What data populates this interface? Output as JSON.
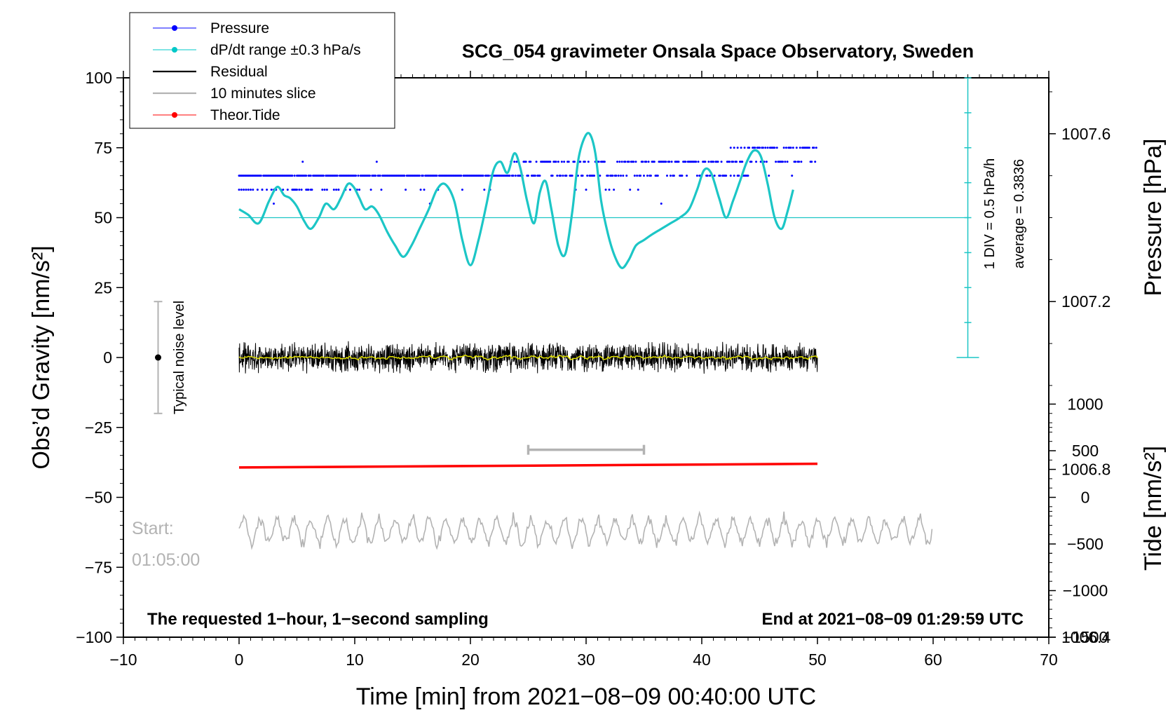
{
  "chart_data": {
    "type": "line",
    "title": "SCG_054 gravimeter Onsala Space Observatory, Sweden",
    "xlabel": "Time [min] from 2021−08−09 00:40:00 UTC",
    "xlim": [
      -10,
      70
    ],
    "x_ticks": [
      "−10",
      "0",
      "10",
      "20",
      "30",
      "40",
      "50",
      "60",
      "70"
    ],
    "left_axis": {
      "label": "Obs’d Gravity [nm/s²]",
      "ylim": [
        -100,
        100
      ],
      "ticks": [
        "100",
        "75",
        "50",
        "25",
        "0",
        "−25",
        "−50",
        "−75",
        "−100"
      ]
    },
    "right_axis_pressure": {
      "label": "Pressure [hPa]",
      "ticks": [
        "1007.6",
        "1007.2",
        "1006.8",
        "1006.4"
      ]
    },
    "right_axis_tide": {
      "label": "Tide [nm/s²]",
      "ticks": [
        "1000",
        "500",
        "0",
        "−500",
        "−1000",
        "−1500"
      ]
    },
    "legend": [
      {
        "label": "Pressure",
        "color": "#0000ff",
        "marker": true
      },
      {
        "label": "dP/dt range ±0.3 hPa/s",
        "color": "#00c8c8",
        "marker": true
      },
      {
        "label": "Residual",
        "color": "#000000",
        "marker": false
      },
      {
        "label": "10 minutes slice",
        "color": "#b3b3b3",
        "marker": false
      },
      {
        "label": "Theor.Tide",
        "color": "#ff0000",
        "marker": true
      }
    ],
    "colors": {
      "pressure": "#0000ff",
      "dpdt": "#1cc6c6",
      "residual": "#000000",
      "residual_smooth": "#e0e000",
      "slice": "#b3b3b3",
      "tide": "#ff0000"
    },
    "series": {
      "pressure_levels_gravity": [
        75,
        70,
        65,
        60,
        55
      ],
      "dpdt": {
        "x": [
          0,
          0.8,
          1.7,
          2.6,
          3.3,
          3.9,
          4.4,
          5,
          5.6,
          6.2,
          6.9,
          7.5,
          8.2,
          8.8,
          9.4,
          9.9,
          10.4,
          10.9,
          11.5,
          12.1,
          12.8,
          13.5,
          14.2,
          14.9,
          15.6,
          16.4,
          17.1,
          17.8,
          18.6,
          19.3,
          20.0,
          20.7,
          21.4,
          22.0,
          22.6,
          23.2,
          23.8,
          24.3,
          24.9,
          25.5,
          26.0,
          26.5,
          27.0,
          27.6,
          28.2,
          28.8,
          29.3,
          29.8,
          30.3,
          30.8,
          31.3,
          31.9,
          32.5,
          33.1,
          33.7,
          34.3,
          35.0,
          35.7,
          36.5,
          37.3,
          38.1,
          38.9,
          39.6,
          40.2,
          40.8,
          41.5,
          42.1,
          42.7,
          43.3,
          43.9,
          44.5,
          45.1,
          45.7,
          46.3,
          46.9,
          47.4,
          47.9
        ],
        "y": [
          53,
          51,
          48,
          56,
          61,
          58,
          57,
          54,
          49,
          46,
          50,
          55,
          53,
          57,
          62,
          61,
          57,
          53,
          54,
          51,
          45,
          40,
          36,
          40,
          46,
          53,
          60,
          62,
          56,
          42,
          33,
          42,
          55,
          67,
          70,
          66,
          73,
          68,
          56,
          48,
          59,
          63,
          53,
          40,
          37,
          52,
          70,
          78,
          80,
          73,
          56,
          44,
          36,
          32,
          35,
          40,
          42,
          44,
          46,
          48,
          50,
          53,
          60,
          67,
          66,
          57,
          50,
          56,
          63,
          70,
          74,
          72,
          62,
          50,
          46,
          52,
          60
        ]
      },
      "dpdt_reference_level": 50,
      "dpdt_scale": {
        "value_axis_top": 100,
        "value_axis_bottom": 0,
        "divisions": 8,
        "division_label": "1 DIV = 0.5 hPa/h",
        "average_label": "average = 0.3836"
      },
      "residual": {
        "x_start": 0,
        "x_end": 50,
        "center": 0,
        "amplitude": 4
      },
      "tide": {
        "x": [
          0,
          50
        ],
        "y_nm_s2": [
          320,
          360
        ]
      },
      "slice_bar": {
        "x": [
          25,
          35
        ],
        "y": -33
      },
      "slice_trace": {
        "x_start": 0,
        "x_end": 60,
        "center": -62,
        "amplitude": 6
      },
      "noise_bar": {
        "x": -7,
        "center": 0,
        "half_range": 20,
        "label": "Typical noise level"
      }
    },
    "annotations": {
      "start_label": "Start:",
      "start_time": "01:05:00",
      "bottom_left": "The requested 1−hour, 1−second sampling",
      "bottom_right": "End at 2021−08−09 01:29:59 UTC"
    }
  }
}
